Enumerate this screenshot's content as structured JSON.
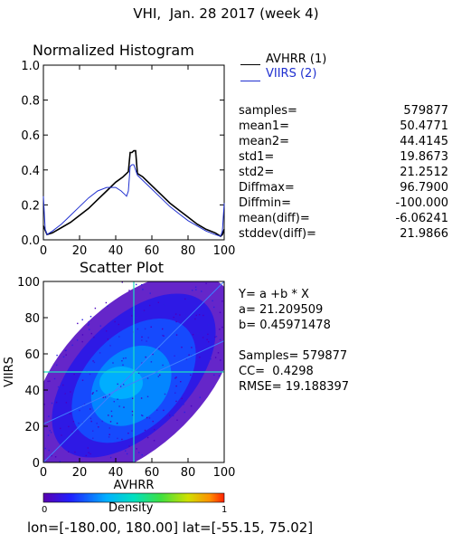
{
  "header": {
    "title": "VHI,  Jan. 28 2017 (week 4)"
  },
  "colors": {
    "avhrr": "#000000",
    "viirs": "#2030d0",
    "fit_line": "#3060ff"
  },
  "chart_data": [
    {
      "type": "line",
      "title": "Normalized Histogram",
      "xlim": [
        0,
        100
      ],
      "ylim": [
        0.0,
        1.0
      ],
      "x_ticks": [
        "0",
        "20",
        "40",
        "60",
        "80",
        "100"
      ],
      "y_ticks": [
        "0.0",
        "0.2",
        "0.4",
        "0.6",
        "0.8",
        "1.0"
      ],
      "series": [
        {
          "name": "AVHRR (1)",
          "color": "#000000",
          "x": [
            0,
            2,
            5,
            10,
            15,
            20,
            25,
            30,
            35,
            40,
            44,
            46,
            47,
            48,
            49,
            50,
            51,
            52,
            55,
            60,
            65,
            70,
            75,
            80,
            85,
            90,
            95,
            98,
            99,
            100
          ],
          "y": [
            0.08,
            0.03,
            0.04,
            0.07,
            0.1,
            0.14,
            0.18,
            0.23,
            0.28,
            0.33,
            0.36,
            0.38,
            0.39,
            0.5,
            0.5,
            0.51,
            0.51,
            0.38,
            0.36,
            0.31,
            0.26,
            0.21,
            0.17,
            0.13,
            0.09,
            0.06,
            0.04,
            0.02,
            0.03,
            0.06
          ]
        },
        {
          "name": "VIIRS (2)",
          "color": "#2030d0",
          "x": [
            0,
            1,
            2,
            5,
            10,
            15,
            20,
            25,
            30,
            35,
            40,
            43,
            45,
            46,
            47,
            48,
            49,
            50,
            51,
            52,
            55,
            60,
            65,
            70,
            75,
            80,
            85,
            90,
            95,
            98,
            99,
            100
          ],
          "y": [
            0.25,
            0.06,
            0.03,
            0.05,
            0.09,
            0.14,
            0.19,
            0.24,
            0.28,
            0.3,
            0.3,
            0.28,
            0.26,
            0.25,
            0.28,
            0.42,
            0.43,
            0.43,
            0.4,
            0.37,
            0.34,
            0.29,
            0.24,
            0.19,
            0.15,
            0.11,
            0.08,
            0.05,
            0.03,
            0.02,
            0.05,
            0.21
          ]
        }
      ]
    },
    {
      "type": "heatmap",
      "title": "Scatter Plot",
      "xlabel": "AVHRR",
      "ylabel": "VIIRS",
      "xlim": [
        0,
        100
      ],
      "ylim": [
        0,
        100
      ],
      "x_ticks": [
        "0",
        "20",
        "40",
        "60",
        "80",
        "100"
      ],
      "y_ticks": [
        "0",
        "20",
        "40",
        "60",
        "80",
        "100"
      ],
      "fit": {
        "a": 21.209509,
        "b": 0.45971478
      },
      "colorbar": {
        "label": "Density",
        "min": "0",
        "max": "1"
      }
    }
  ],
  "legend": [
    {
      "label": "AVHRR (1)",
      "color": "#000000"
    },
    {
      "label": "VIIRS (2)",
      "color": "#2030d0"
    }
  ],
  "stats": [
    {
      "label": "samples=",
      "value": "579877"
    },
    {
      "label": "mean1=",
      "value": "50.4771"
    },
    {
      "label": "mean2=",
      "value": "44.4145"
    },
    {
      "label": "std1=",
      "value": "19.8673"
    },
    {
      "label": "std2=",
      "value": "21.2512"
    },
    {
      "label": "Diffmax=",
      "value": "96.7900"
    },
    {
      "label": "Diffmin=",
      "value": "-100.000"
    },
    {
      "label": "mean(diff)=",
      "value": "-6.06241"
    },
    {
      "label": "stddev(diff)=",
      "value": "21.9866"
    }
  ],
  "regression": {
    "equation": "Y= a +b * X",
    "a_text": "a= 21.209509",
    "b_text": "b= 0.45971478",
    "samples_text": "Samples= 579877",
    "cc_text": "CC=  0.4298",
    "rmse_text": "RMSE= 19.188397"
  },
  "footer": {
    "range_text": "lon=[-180.00, 180.00] lat=[-55.15, 75.02]"
  }
}
